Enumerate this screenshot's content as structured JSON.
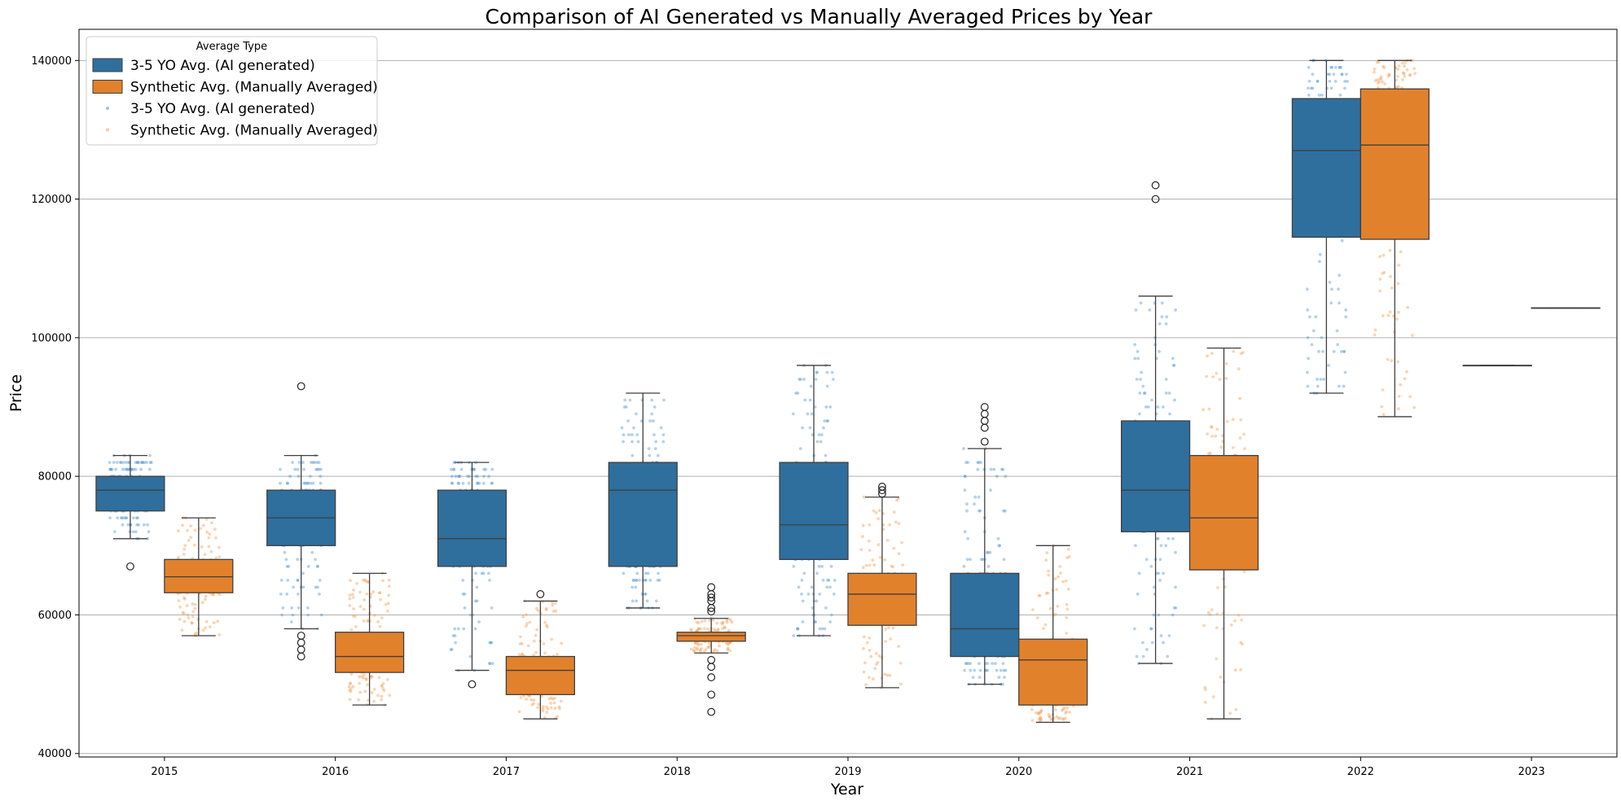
{
  "chart_data": {
    "type": "box",
    "title": "Comparison of AI Generated vs Manually Averaged Prices by Year",
    "xlabel": "Year",
    "ylabel": "Price",
    "ylim": [
      39500,
      144500
    ],
    "yticks": [
      40000,
      60000,
      80000,
      100000,
      120000,
      140000
    ],
    "grid": "y",
    "categories": [
      "2015",
      "2016",
      "2017",
      "2018",
      "2019",
      "2020",
      "2021",
      "2022",
      "2023"
    ],
    "legend": {
      "title": "Average Type",
      "position": "top-left",
      "entries": [
        {
          "label": "3-5 YO Avg. (AI generated)",
          "kind": "box",
          "series": 0
        },
        {
          "label": "Synthetic Avg. (Manually Averaged)",
          "kind": "box",
          "series": 1
        },
        {
          "label": "3-5 YO Avg. (AI generated)",
          "kind": "point",
          "series": 0
        },
        {
          "label": "Synthetic Avg. (Manually Averaged)",
          "kind": "point",
          "series": 1
        }
      ]
    },
    "series": [
      {
        "name": "3-5 YO Avg. (AI generated)",
        "color": "#2e6f9e",
        "point_color": "#5b9bd0",
        "boxes": [
          {
            "year": "2015",
            "q1": 75000,
            "median": 78000,
            "q3": 80000,
            "whislo": 71000,
            "whishi": 83000,
            "fliers": [
              67000
            ]
          },
          {
            "year": "2016",
            "q1": 70000,
            "median": 74000,
            "q3": 78000,
            "whislo": 58000,
            "whishi": 83000,
            "fliers": [
              93000,
              57000,
              56000,
              55000,
              54000
            ]
          },
          {
            "year": "2017",
            "q1": 67000,
            "median": 71000,
            "q3": 78000,
            "whislo": 52000,
            "whishi": 82000,
            "fliers": [
              50000
            ]
          },
          {
            "year": "2018",
            "q1": 67000,
            "median": 78000,
            "q3": 82000,
            "whislo": 61000,
            "whishi": 92000,
            "fliers": []
          },
          {
            "year": "2019",
            "q1": 68000,
            "median": 73000,
            "q3": 82000,
            "whislo": 57000,
            "whishi": 96000,
            "fliers": []
          },
          {
            "year": "2020",
            "q1": 54000,
            "median": 58000,
            "q3": 66000,
            "whislo": 50000,
            "whishi": 84000,
            "fliers": [
              90000,
              89000,
              88000,
              87000,
              85000
            ]
          },
          {
            "year": "2021",
            "q1": 72000,
            "median": 78000,
            "q3": 88000,
            "whislo": 53000,
            "whishi": 106000,
            "fliers": [
              122000,
              120000
            ]
          },
          {
            "year": "2022",
            "q1": 114500,
            "median": 127000,
            "q3": 134500,
            "whislo": 92000,
            "whishi": 140000,
            "fliers": []
          },
          {
            "year": "2023",
            "q1": 96000,
            "median": 96000,
            "q3": 96000,
            "whislo": 96000,
            "whishi": 96000,
            "fliers": []
          }
        ]
      },
      {
        "name": "Synthetic Avg. (Manually Averaged)",
        "color": "#e2812c",
        "point_color": "#f5a25b",
        "boxes": [
          {
            "year": "2015",
            "q1": 63200,
            "median": 65500,
            "q3": 68000,
            "whislo": 57000,
            "whishi": 74000,
            "fliers": []
          },
          {
            "year": "2016",
            "q1": 51700,
            "median": 54000,
            "q3": 57500,
            "whislo": 47000,
            "whishi": 66000,
            "fliers": []
          },
          {
            "year": "2017",
            "q1": 48500,
            "median": 52000,
            "q3": 54000,
            "whislo": 45000,
            "whishi": 62000,
            "fliers": [
              63000
            ]
          },
          {
            "year": "2018",
            "q1": 56200,
            "median": 57000,
            "q3": 57500,
            "whislo": 54500,
            "whishi": 59500,
            "fliers": [
              64000,
              63000,
              62500,
              62000,
              61000,
              60500,
              53500,
              52500,
              51000,
              48500,
              46000
            ]
          },
          {
            "year": "2019",
            "q1": 58500,
            "median": 63000,
            "q3": 66000,
            "whislo": 49500,
            "whishi": 77000,
            "fliers": [
              78500,
              78000,
              77500
            ]
          },
          {
            "year": "2020",
            "q1": 47000,
            "median": 53500,
            "q3": 56500,
            "whislo": 44500,
            "whishi": 70000,
            "fliers": []
          },
          {
            "year": "2021",
            "q1": 66500,
            "median": 74000,
            "q3": 83000,
            "whislo": 45000,
            "whishi": 98500,
            "fliers": []
          },
          {
            "year": "2022",
            "q1": 114200,
            "median": 127800,
            "q3": 135900,
            "whislo": 88600,
            "whishi": 140000,
            "fliers": []
          },
          {
            "year": "2023",
            "q1": 104300,
            "median": 104300,
            "q3": 104300,
            "whislo": 104300,
            "whishi": 104300,
            "fliers": []
          }
        ]
      }
    ]
  }
}
